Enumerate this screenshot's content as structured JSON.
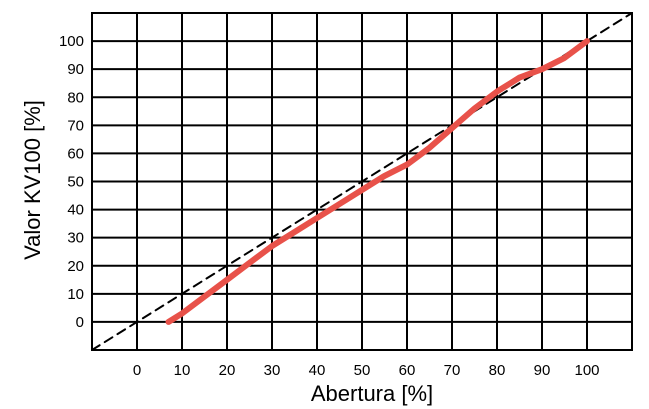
{
  "chart_data": {
    "type": "line",
    "xlabel": "Abertura [%]",
    "ylabel": "Valor KV100 [%]",
    "xlim": [
      -10,
      110
    ],
    "ylim": [
      -10,
      110
    ],
    "x_ticks": [
      0,
      10,
      20,
      30,
      40,
      50,
      60,
      70,
      80,
      90,
      100
    ],
    "y_ticks": [
      0,
      10,
      20,
      30,
      40,
      50,
      60,
      70,
      80,
      90,
      100
    ],
    "grid": true,
    "series": [
      {
        "style": "solid",
        "color": "#e8524a",
        "x": [
          7,
          10,
          15,
          20,
          25,
          30,
          35,
          40,
          45,
          50,
          55,
          60,
          65,
          70,
          75,
          80,
          85,
          90,
          95,
          100
        ],
        "y": [
          0,
          3,
          9,
          15,
          21,
          27,
          32,
          37,
          42,
          47,
          52,
          56,
          62,
          69,
          76,
          82,
          87,
          90,
          94,
          100
        ]
      },
      {
        "style": "dashed",
        "color": "#000000",
        "x": [
          -10,
          110
        ],
        "y": [
          -10,
          110
        ]
      }
    ]
  }
}
